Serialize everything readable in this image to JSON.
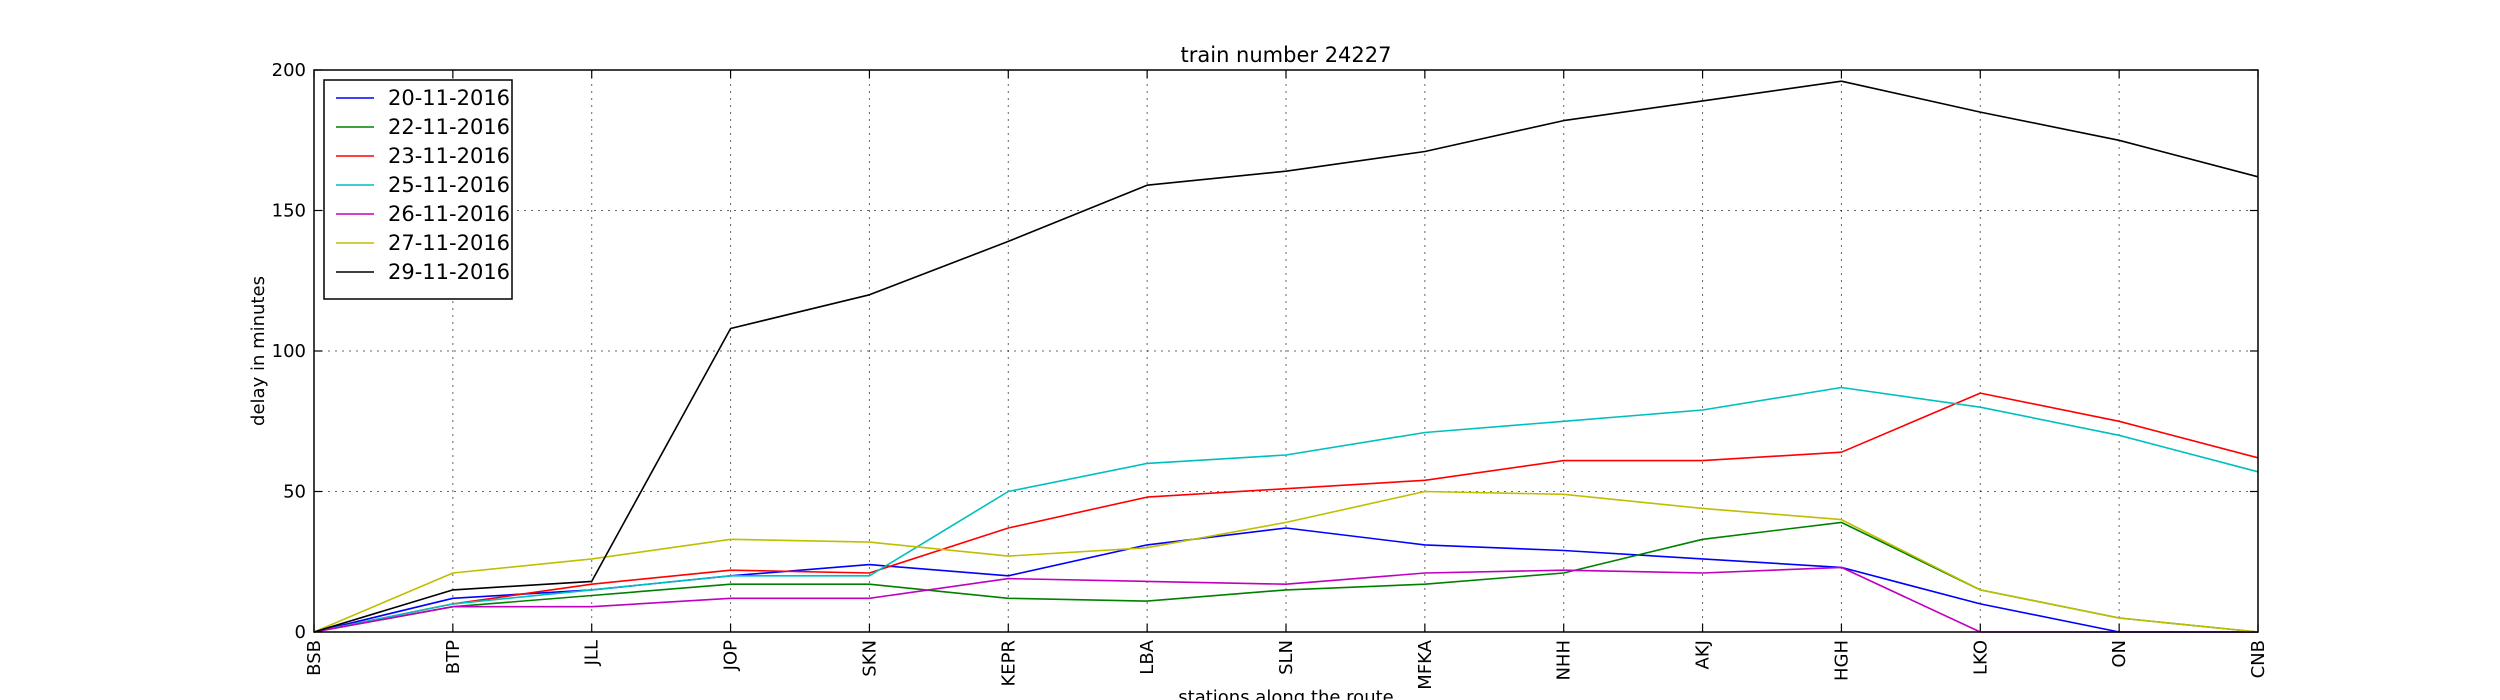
{
  "chart_data": {
    "type": "line",
    "title": "train number 24227",
    "xlabel": "stations along the route",
    "ylabel": "delay in minutes",
    "ylim": [
      0,
      200
    ],
    "yticks": [
      0,
      50,
      100,
      150,
      200
    ],
    "grid": true,
    "legend_position": "top-left",
    "categories": [
      "BSB",
      "BTP",
      "JLL",
      "JOP",
      "SKN",
      "KEPR",
      "LBA",
      "SLN",
      "MFKA",
      "NHH",
      "AKJ",
      "HGH",
      "LKO",
      "ON",
      "CNB"
    ],
    "series": [
      {
        "name": "20-11-2016",
        "color": "#0000ff",
        "values": [
          0,
          12,
          15,
          20,
          24,
          20,
          31,
          37,
          31,
          29,
          26,
          23,
          10,
          0,
          0
        ]
      },
      {
        "name": "22-11-2016",
        "color": "#008000",
        "values": [
          0,
          9,
          13,
          17,
          17,
          12,
          11,
          15,
          17,
          21,
          33,
          39,
          15,
          5,
          0
        ]
      },
      {
        "name": "23-11-2016",
        "color": "#ff0000",
        "values": [
          0,
          10,
          17,
          22,
          21,
          37,
          48,
          51,
          54,
          61,
          61,
          64,
          85,
          75,
          62
        ]
      },
      {
        "name": "25-11-2016",
        "color": "#00bfbf",
        "values": [
          0,
          10,
          15,
          20,
          20,
          50,
          60,
          63,
          71,
          75,
          79,
          87,
          80,
          70,
          57
        ]
      },
      {
        "name": "26-11-2016",
        "color": "#bf00bf",
        "values": [
          0,
          9,
          9,
          12,
          12,
          19,
          18,
          17,
          21,
          22,
          21,
          23,
          0,
          0,
          0
        ]
      },
      {
        "name": "27-11-2016",
        "color": "#bfbf00",
        "values": [
          0,
          21,
          26,
          33,
          32,
          27,
          30,
          39,
          50,
          49,
          44,
          40,
          15,
          5,
          0
        ]
      },
      {
        "name": "29-11-2016",
        "color": "#000000",
        "values": [
          0,
          15,
          18,
          108,
          120,
          139,
          159,
          164,
          171,
          182,
          189,
          196,
          185,
          175,
          162
        ]
      }
    ]
  }
}
